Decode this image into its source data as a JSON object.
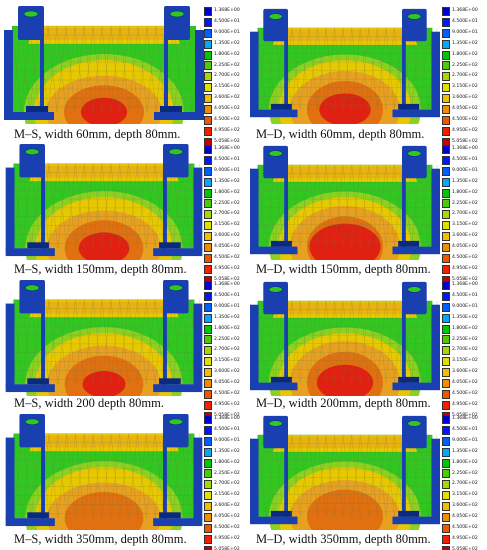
{
  "legend": {
    "labels": [
      "1.368E+00",
      "4.500E+01",
      "9.000E+01",
      "1.350E+02",
      "1.800E+02",
      "2.250E+02",
      "2.700E+02",
      "3.150E+02",
      "3.600E+02",
      "4.050E+02",
      "4.500E+02",
      "4.950E+02",
      "5.058E+02"
    ],
    "colors": [
      "#0000d0",
      "#0018ff",
      "#0060ff",
      "#00a8ff",
      "#00c800",
      "#4ccc00",
      "#a8d800",
      "#e0e000",
      "#f0c000",
      "#f08c00",
      "#f05800",
      "#f02000",
      "#c80000"
    ]
  },
  "palette": {
    "structure": "#1a3fb0",
    "structure_dark": "#0a2a80",
    "base_green": "#30c820",
    "mid_green": "#8cd020",
    "yellow": "#e8c800",
    "orange": "#e8a020",
    "deep_orange": "#e07010",
    "red": "#e02010",
    "mesh": "#6a7a40"
  },
  "panels": [
    {
      "caption": "M–S, width  60mm, depth 80mm.",
      "intensity": 0.55,
      "hotspot": 0.35
    },
    {
      "caption": "M–D, width  60mm, depth 80mm.",
      "intensity": 0.65,
      "hotspot": 0.5
    },
    {
      "caption": "M–S, width 150mm, depth 80mm.",
      "intensity": 0.6,
      "hotspot": 0.45
    },
    {
      "caption": "M–D, width 150mm, depth 80mm.",
      "intensity": 0.7,
      "hotspot": 0.9
    },
    {
      "caption": "M–S, width 200 depth 80mm.",
      "intensity": 0.62,
      "hotspot": 0.3
    },
    {
      "caption": "M–D, width 200mm, depth 80mm.",
      "intensity": 0.72,
      "hotspot": 0.6
    },
    {
      "caption": "M–S, width 350mm, depth 80mm.",
      "intensity": 0.55,
      "hotspot": 0.1
    },
    {
      "caption": "M–D, width 350mm, depth 80mm.",
      "intensity": 0.6,
      "hotspot": 0.15
    }
  ]
}
